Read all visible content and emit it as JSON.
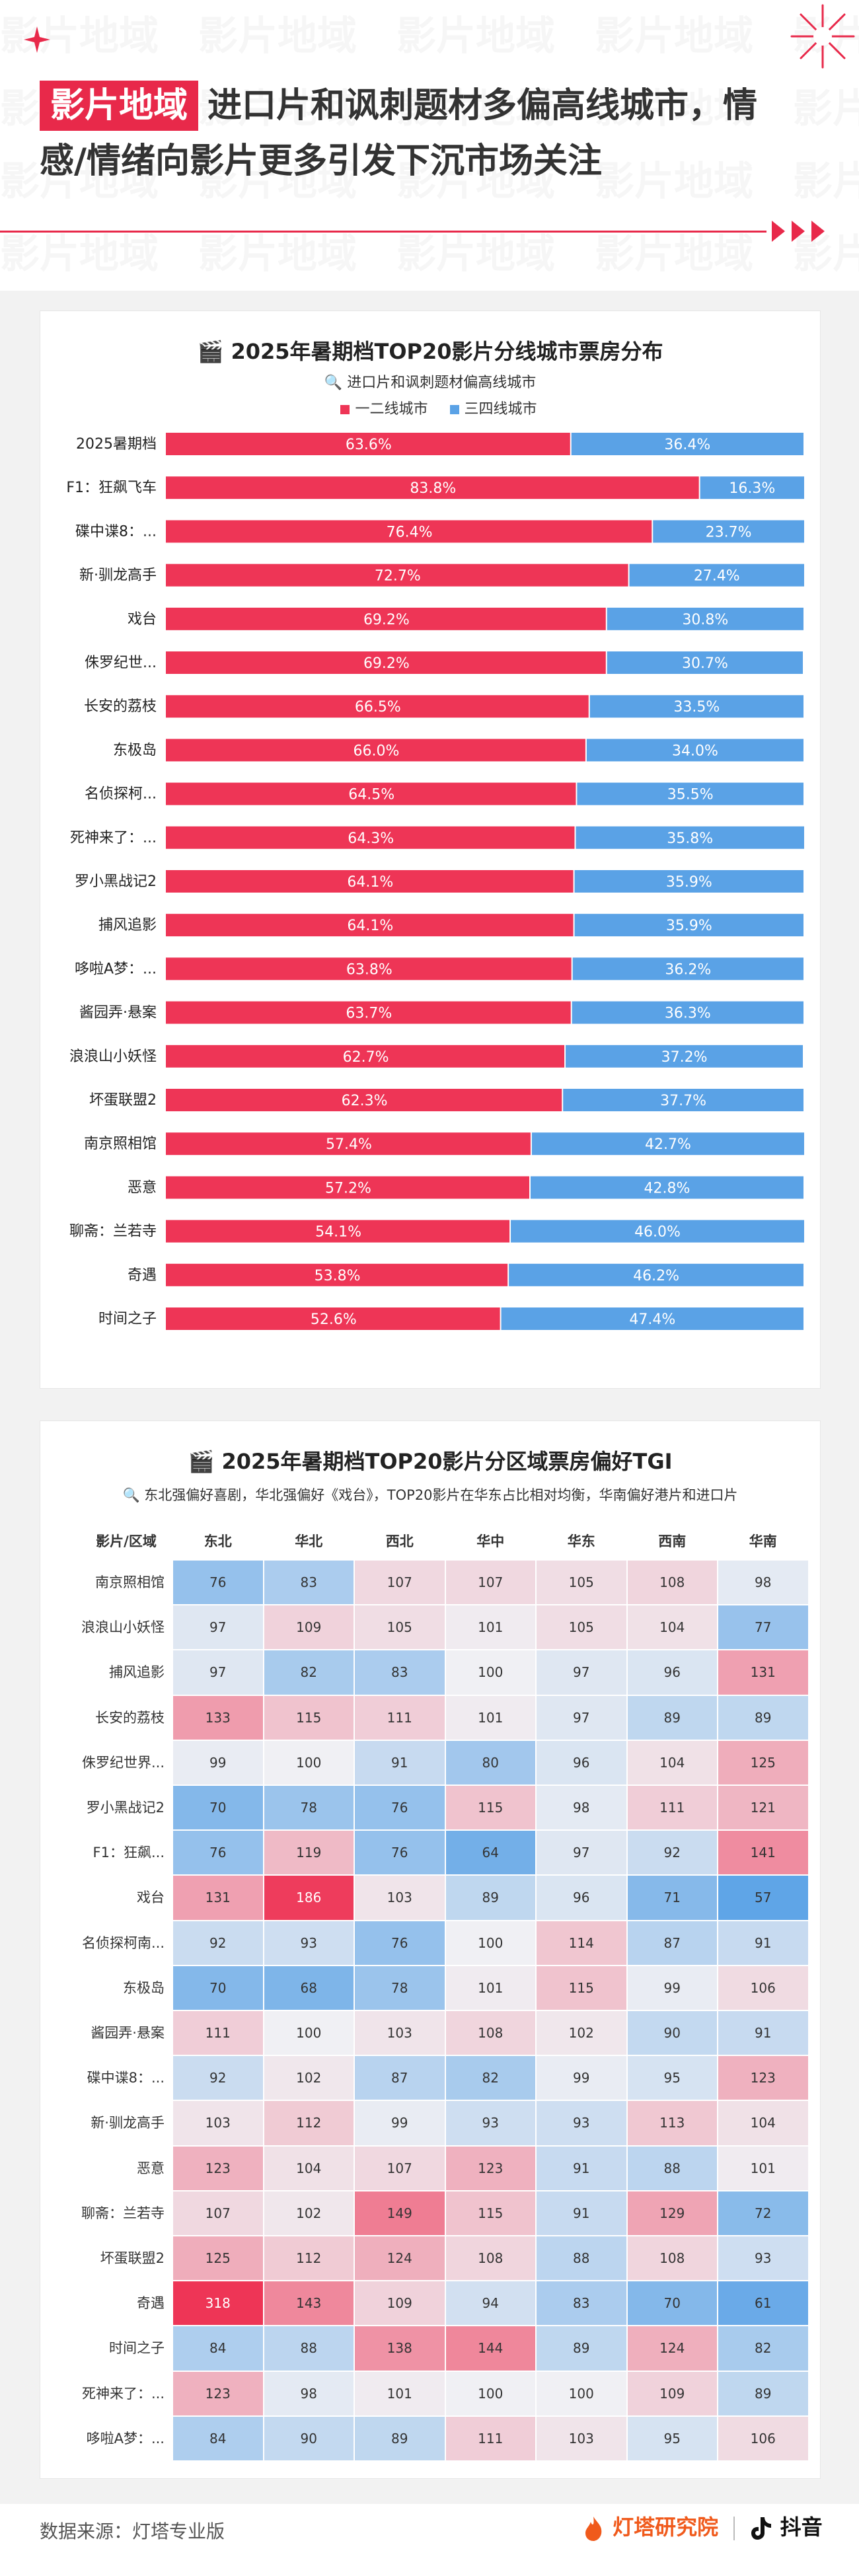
{
  "header": {
    "tag": "影片地域",
    "title_line1": "进口片和讽刺题材多偏高线城市，情",
    "title_line2": "感/情绪向影片更多引发下沉市场关注"
  },
  "bar_chart": {
    "icon": "🎬",
    "title": "2025年暑期档TOP20影片分线城市票房分布",
    "subtitle_icon": "🔍",
    "subtitle": "进口片和讽刺题材偏高线城市",
    "legend": [
      "一二线城市",
      "三四线城市"
    ]
  },
  "heatmap": {
    "icon": "🎬",
    "title": "2025年暑期档TOP20影片分区域票房偏好TGI",
    "subtitle_icon": "🔍",
    "subtitle": "东北强偏好喜剧，华北强偏好《戏台》，TOP20影片在华东占比相对均衡，华南偏好港片和进口片",
    "corner_label": "影片/区域"
  },
  "chart_data": [
    {
      "type": "bar",
      "stacked": true,
      "orientation": "horizontal",
      "title": "2025年暑期档TOP20影片分线城市票房分布",
      "subtitle": "进口片和讽刺题材偏高线城市",
      "xlim": [
        0,
        100
      ],
      "categories": [
        "2025暑期档",
        "F1：狂飙飞车",
        "碟中谍8：...",
        "新·驯龙高手",
        "戏台",
        "侏罗纪世...",
        "长安的荔枝",
        "东极岛",
        "名侦探柯...",
        "死神来了：...",
        "罗小黑战记2",
        "捕风追影",
        "哆啦A梦：...",
        "酱园弄·悬案",
        "浪浪山小妖怪",
        "坏蛋联盟2",
        "南京照相馆",
        "恶意",
        "聊斋：兰若寺",
        "奇遇",
        "时间之子"
      ],
      "series": [
        {
          "name": "一二线城市",
          "color": "#ee3556",
          "values": [
            63.6,
            83.8,
            76.4,
            72.7,
            69.2,
            69.2,
            66.5,
            66.0,
            64.5,
            64.3,
            64.1,
            64.1,
            63.8,
            63.7,
            62.7,
            62.3,
            57.4,
            57.2,
            54.1,
            53.8,
            52.6
          ]
        },
        {
          "name": "三四线城市",
          "color": "#5aa2e6",
          "values": [
            36.4,
            16.3,
            23.7,
            27.4,
            30.8,
            30.7,
            33.5,
            34.0,
            35.5,
            35.8,
            35.9,
            35.9,
            36.2,
            36.3,
            37.2,
            37.7,
            42.7,
            42.8,
            46.0,
            46.2,
            47.4
          ]
        }
      ],
      "value_labels": [
        [
          "63.6%",
          "83.8%",
          "76.4%",
          "72.7%",
          "69.2%",
          "69.2%",
          "66.5%",
          "66.0%",
          "64.5%",
          "64.3%",
          "64.1%",
          "64.1%",
          "63.8%",
          "63.7%",
          "62.7%",
          "62.3%",
          "57.4%",
          "57.2%",
          "54.1%",
          "53.8%",
          "52.6%"
        ],
        [
          "36.4%",
          "16.3%",
          "23.7%",
          "27.4%",
          "30.8%",
          "30.7%",
          "33.5%",
          "34.0%",
          "35.5%",
          "35.8%",
          "35.9%",
          "35.9%",
          "36.2%",
          "36.3%",
          "37.2%",
          "37.7%",
          "42.7%",
          "42.8%",
          "46.0%",
          "46.2%",
          "47.4%"
        ]
      ]
    },
    {
      "type": "heatmap",
      "title": "2025年暑期档TOP20影片分区域票房偏好TGI",
      "subtitle": "东北强偏好喜剧，华北强偏好《戏台》，TOP20影片在华东占比相对均衡，华南偏好港片和进口片",
      "corner_label": "影片/区域",
      "columns": [
        "东北",
        "华北",
        "西北",
        "华中",
        "华东",
        "西南",
        "华南"
      ],
      "rows": [
        "南京照相馆",
        "浪浪山小妖怪",
        "捕风追影",
        "长安的荔枝",
        "侏罗纪世界...",
        "罗小黑战记2",
        "F1：狂飙...",
        "戏台",
        "名侦探柯南...",
        "东极岛",
        "酱园弄·悬案",
        "碟中谍8：...",
        "新·驯龙高手",
        "恶意",
        "聊斋：兰若寺",
        "坏蛋联盟2",
        "奇遇",
        "时间之子",
        "死神来了：...",
        "哆啦A梦：..."
      ],
      "values": [
        [
          76,
          83,
          107,
          107,
          105,
          108,
          98
        ],
        [
          97,
          109,
          105,
          101,
          105,
          104,
          77
        ],
        [
          97,
          82,
          83,
          100,
          97,
          96,
          131
        ],
        [
          133,
          115,
          111,
          101,
          97,
          89,
          89
        ],
        [
          99,
          100,
          91,
          80,
          96,
          104,
          125
        ],
        [
          70,
          78,
          76,
          115,
          98,
          111,
          121
        ],
        [
          76,
          119,
          76,
          64,
          97,
          92,
          141
        ],
        [
          131,
          186,
          103,
          89,
          96,
          71,
          57
        ],
        [
          92,
          93,
          76,
          100,
          114,
          87,
          91
        ],
        [
          70,
          68,
          78,
          101,
          115,
          99,
          106
        ],
        [
          111,
          100,
          103,
          108,
          102,
          90,
          91
        ],
        [
          92,
          102,
          87,
          82,
          99,
          95,
          123
        ],
        [
          103,
          112,
          99,
          93,
          93,
          113,
          104
        ],
        [
          123,
          104,
          107,
          123,
          91,
          88,
          101
        ],
        [
          107,
          102,
          149,
          115,
          91,
          129,
          72
        ],
        [
          125,
          112,
          124,
          108,
          88,
          108,
          93
        ],
        [
          318,
          143,
          109,
          94,
          83,
          70,
          61
        ],
        [
          84,
          88,
          138,
          144,
          89,
          124,
          82
        ],
        [
          123,
          98,
          101,
          100,
          100,
          109,
          89
        ],
        [
          84,
          90,
          89,
          111,
          103,
          95,
          106
        ]
      ]
    }
  ],
  "footer": {
    "source": "数据来源：灯塔专业版",
    "brand_dengta": "灯塔研究院",
    "brand_douyin": "抖音"
  },
  "colors": {
    "accent": "#e8294a",
    "bar_high": "#ee3556",
    "bar_low": "#5aa2e6",
    "heat_high": "#ee3556",
    "heat_low": "#5aa2e6",
    "card_bg": "#f2f2f2"
  }
}
